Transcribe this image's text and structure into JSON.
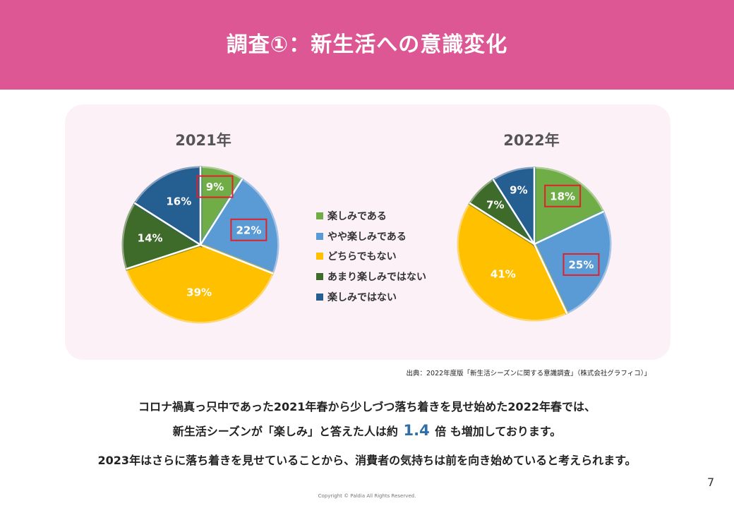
{
  "header": {
    "title": "調査①：新生活への意識変化"
  },
  "chart_data": [
    {
      "type": "pie",
      "title": "2021年",
      "categories": [
        "楽しみである",
        "やや楽しみである",
        "どちらでもない",
        "あまり楽しみではない",
        "楽しみではない"
      ],
      "values": [
        9,
        22,
        39,
        14,
        16
      ],
      "labels": [
        "9%",
        "22%",
        "39%",
        "14%",
        "16%"
      ],
      "colors": [
        "#70ad47",
        "#5b9bd5",
        "#ffc000",
        "#3e6b2a",
        "#255e91"
      ],
      "highlighted": [
        "9%",
        "22%"
      ]
    },
    {
      "type": "pie",
      "title": "2022年",
      "categories": [
        "楽しみである",
        "やや楽しみである",
        "どちらでもない",
        "あまり楽しみではない",
        "楽しみではない"
      ],
      "values": [
        18,
        25,
        41,
        7,
        9
      ],
      "labels": [
        "18%",
        "25%",
        "41%",
        "7%",
        "9%"
      ],
      "colors": [
        "#70ad47",
        "#5b9bd5",
        "#ffc000",
        "#3e6b2a",
        "#255e91"
      ],
      "highlighted": [
        "18%",
        "25%"
      ]
    }
  ],
  "legend": {
    "items": [
      {
        "label": "楽しみである",
        "color": "#70ad47"
      },
      {
        "label": "やや楽しみである",
        "color": "#5b9bd5"
      },
      {
        "label": "どちらでもない",
        "color": "#ffc000"
      },
      {
        "label": "あまり楽しみではない",
        "color": "#3e6b2a"
      },
      {
        "label": "楽しみではない",
        "color": "#255e91"
      }
    ]
  },
  "highlight_color": "#e0212b",
  "source": "出典：2022年度版「新生活シーズンに関する意識調査」（株式会社グラフィコ）」",
  "body": {
    "line1": "コロナ禍真っ只中であった2021年春から少しづつ落ち着きを見せ始めた2022年春では、",
    "line2_prefix": "新生活シーズンが「楽しみ」と答えた人は約",
    "line2_value": "1.4",
    "line2_suffix": "倍 も増加しております。",
    "line3": "2023年はさらに落ち着きを見せていることから、消費者の気持ちは前を向き始めていると考えられます。"
  },
  "page_number": "7",
  "copyright": "Copyright © Paldia All Rights Reserved."
}
